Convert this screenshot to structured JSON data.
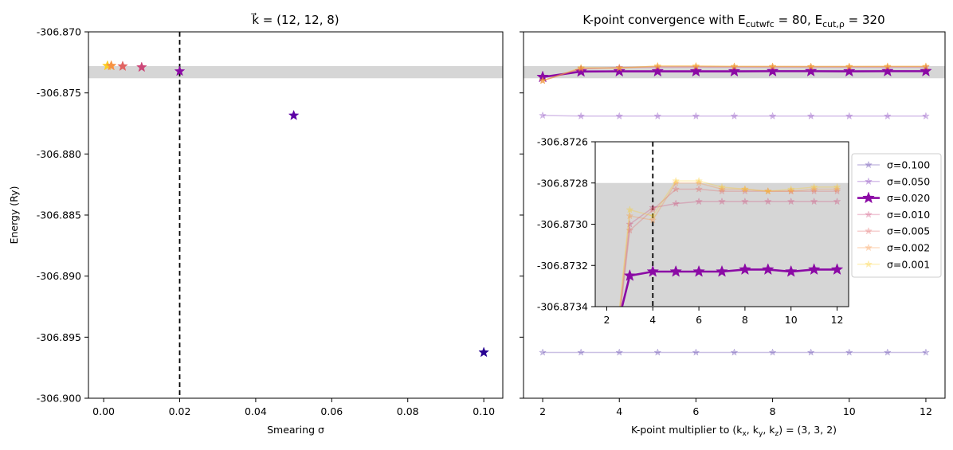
{
  "figure": {
    "ylabel": "Energy (Ry)",
    "left_title": "k⃗ = (12, 12, 8)",
    "right_title": "K-point convergence with E",
    "right_title_parts": {
      "prefix": "K-point convergence with E",
      "sub1": "cutwfc",
      "mid": " = 80, E",
      "sub2": "cut,ρ",
      "suffix": " = 320"
    },
    "left_xlabel": "Smearing σ",
    "right_xlabel": "K-point multiplier to (k",
    "right_xlabel_parts": {
      "prefix": "K-point multiplier to (k",
      "a": "x",
      "b": ", k",
      "c": "y",
      "d": ", k",
      "e": "z",
      "suffix": ") = (3, 3, 2)"
    }
  },
  "chart_data": [
    {
      "type": "scatter",
      "title": "k⃗ = (12, 12, 8)",
      "xlabel": "Smearing σ",
      "ylabel": "Energy (Ry)",
      "xlim": [
        -0.004,
        0.105
      ],
      "ylim": [
        -306.9,
        -306.87
      ],
      "xticks": [
        0.0,
        0.02,
        0.04,
        0.06,
        0.08,
        0.1
      ],
      "xtick_labels": [
        "0.00",
        "0.02",
        "0.04",
        "0.06",
        "0.08",
        "0.10"
      ],
      "yticks": [
        -306.87,
        -306.875,
        -306.88,
        -306.885,
        -306.89,
        -306.895,
        -306.9
      ],
      "ytick_labels": [
        "-306.870",
        "-306.875",
        "-306.880",
        "-306.885",
        "-306.890",
        "-306.895",
        "-306.900"
      ],
      "points": [
        {
          "x": 0.001,
          "y": -306.87278,
          "color": "#fcce25"
        },
        {
          "x": 0.002,
          "y": -306.87278,
          "color": "#f79342"
        },
        {
          "x": 0.005,
          "y": -306.87282,
          "color": "#e16462"
        },
        {
          "x": 0.01,
          "y": -306.8729,
          "color": "#cc4778"
        },
        {
          "x": 0.02,
          "y": -306.87323,
          "color": "#8b0aa5"
        },
        {
          "x": 0.05,
          "y": -306.87685,
          "color": "#5d01a6"
        },
        {
          "x": 0.1,
          "y": -306.89625,
          "color": "#2a0593"
        }
      ],
      "band": [
        -306.8738,
        -306.8728
      ],
      "vline": 0.02,
      "grid": false
    },
    {
      "type": "line",
      "title": "K-point convergence with E_cutwfc = 80, E_cut,ρ = 320",
      "xlabel": "K-point multiplier to (k_x, k_y, k_z) = (3, 3, 2)",
      "xlim": [
        1.5,
        12.5
      ],
      "ylim": [
        -306.9,
        -306.87
      ],
      "xticks": [
        2,
        4,
        6,
        8,
        10,
        12
      ],
      "xtick_labels": [
        "2",
        "4",
        "6",
        "8",
        "10",
        "12"
      ],
      "x": [
        2,
        3,
        4,
        5,
        6,
        7,
        8,
        9,
        10,
        11,
        12
      ],
      "series": [
        {
          "name": "σ=0.100",
          "color": "#2a0593",
          "opacity": 0.25,
          "bold": false,
          "values": [
            -306.89625,
            -306.89625,
            -306.89625,
            -306.89625,
            -306.89625,
            -306.89625,
            -306.89625,
            -306.89625,
            -306.89625,
            -306.89625,
            -306.89625
          ]
        },
        {
          "name": "σ=0.050",
          "color": "#5d01a6",
          "opacity": 0.25,
          "bold": false,
          "values": [
            -306.87685,
            -306.8769,
            -306.8769,
            -306.8769,
            -306.8769,
            -306.8769,
            -306.8769,
            -306.8769,
            -306.8769,
            -306.8769,
            -306.8769
          ]
        },
        {
          "name": "σ=0.020",
          "color": "#8b0aa5",
          "opacity": 1.0,
          "bold": true,
          "values": [
            -306.8737,
            -306.87325,
            -306.87323,
            -306.87323,
            -306.87323,
            -306.87323,
            -306.87322,
            -306.87322,
            -306.87323,
            -306.87322,
            -306.87322
          ]
        },
        {
          "name": "σ=0.010",
          "color": "#cc4778",
          "opacity": 0.3,
          "bold": false,
          "values": [
            -306.874,
            -306.873,
            -306.87292,
            -306.8729,
            -306.87289,
            -306.87289,
            -306.87289,
            -306.87289,
            -306.87289,
            -306.87289,
            -306.87289
          ]
        },
        {
          "name": "σ=0.005",
          "color": "#e16462",
          "opacity": 0.3,
          "bold": false,
          "values": [
            -306.874,
            -306.87303,
            -306.87293,
            -306.87283,
            -306.87283,
            -306.87284,
            -306.87284,
            -306.87284,
            -306.87284,
            -306.87284,
            -306.87284
          ]
        },
        {
          "name": "σ=0.002",
          "color": "#f79342",
          "opacity": 0.3,
          "bold": false,
          "values": [
            -306.874,
            -306.87296,
            -306.87298,
            -306.8728,
            -306.8728,
            -306.87283,
            -306.87283,
            -306.87284,
            -306.87284,
            -306.87283,
            -306.87283
          ]
        },
        {
          "name": "σ=0.001",
          "color": "#fcce25",
          "opacity": 0.3,
          "bold": false,
          "values": [
            -306.874,
            -306.87293,
            -306.87296,
            -306.87279,
            -306.87279,
            -306.87282,
            -306.87283,
            -306.87284,
            -306.87283,
            -306.87282,
            -306.87282
          ]
        }
      ],
      "band": [
        -306.8738,
        -306.8728
      ],
      "legend_position": "right",
      "grid": false,
      "inset": {
        "xlim": [
          1.5,
          12.5
        ],
        "ylim": [
          -306.8734,
          -306.8726
        ],
        "xticks": [
          2,
          4,
          6,
          8,
          10,
          12
        ],
        "xtick_labels": [
          "2",
          "4",
          "6",
          "8",
          "10",
          "12"
        ],
        "yticks": [
          -306.8726,
          -306.8728,
          -306.873,
          -306.8732,
          -306.8734
        ],
        "ytick_labels": [
          "-306.8726",
          "-306.8728",
          "-306.8730",
          "-306.8732",
          "-306.8734"
        ],
        "band": [
          -306.8738,
          -306.8728
        ],
        "vline": 4
      }
    }
  ]
}
